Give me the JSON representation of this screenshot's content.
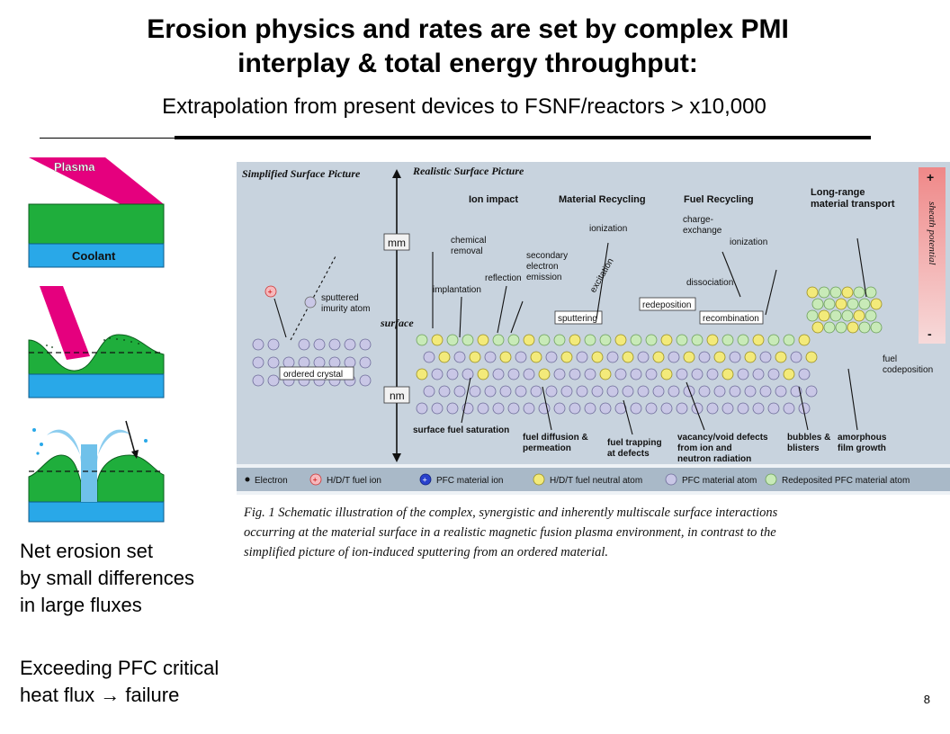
{
  "slide": {
    "title_line1": "Erosion physics and rates are set by complex PMI",
    "title_line2": "interplay & total energy throughput:",
    "subtitle": "Extrapolation from present devices to FSNF/reactors > x10,000",
    "net_erosion_text": "Net erosion set\nby small differences\nin large fluxes",
    "critical_pre": "Exceeding PFC critical",
    "critical_line2_a": "heat flux ",
    "critical_arrow": "→",
    "critical_line2_b": " failure",
    "page_number": "8"
  },
  "sketches": {
    "plasma_label": "Plasma",
    "coolant_label": "Coolant"
  },
  "figure": {
    "simplified_heading": "Simplified Surface Picture",
    "realistic_heading": "Realistic Surface Picture",
    "section_ion_impact": "Ion impact",
    "section_material_recycling": "Material Recycling",
    "section_fuel_recycling": "Fuel Recycling",
    "section_transport": "Long-range",
    "section_transport_2": "material transport",
    "scale_mm": "mm",
    "scale_nm": "nm",
    "surface_label": "surface",
    "sheath_plus": "+",
    "sheath_label": "sheath potential",
    "sheath_minus": "-",
    "labels": {
      "sputtered_1": "sputtered",
      "sputtered_2": "imurity atom",
      "ordered_crystal": "ordered crystal",
      "chemical_1": "chemical",
      "chemical_2": "removal",
      "implantation": "implantation",
      "reflection": "reflection",
      "secondary_1": "secondary",
      "secondary_2": "electron",
      "secondary_3": "emission",
      "ionization_a": "ionization",
      "excitation": "excitation",
      "sputtering": "sputtering",
      "charge_1": "charge-",
      "charge_2": "exchange",
      "ionization_b": "ionization",
      "dissociation": "dissociation",
      "redeposition": "redeposition",
      "recombination": "recombination",
      "fuel_codep_1": "fuel",
      "fuel_codep_2": "codeposition",
      "surface_fuel_sat": "surface fuel saturation",
      "fuel_diff_1": "fuel diffusion &",
      "fuel_diff_2": "permeation",
      "fuel_trap_1": "fuel trapping",
      "fuel_trap_2": "at defects",
      "vacancy_1": "vacancy/void defects",
      "vacancy_2": "from ion and",
      "vacancy_3": "neutron radiation",
      "bubbles_1": "bubbles &",
      "bubbles_2": "blisters",
      "amorphous_1": "amorphous",
      "amorphous_2": "film growth"
    },
    "legend": {
      "electron": "Electron",
      "fuel_ion": "H/D/T fuel ion",
      "pfc_ion": "PFC material ion",
      "neutral": "H/D/T fuel neutral atom",
      "pfc_atom": "PFC material atom",
      "redeposited": "Redeposited PFC material atom"
    },
    "caption_1": "Fig. 1 Schematic illustration of the complex, synergistic and inherently multiscale surface interactions",
    "caption_2": "occurring at the material surface in a realistic magnetic fusion plasma environment, in contrast to the",
    "caption_3": "simplified picture of ion-induced sputtering from an ordered material."
  },
  "colors": {
    "plasma_magenta": "#e5007e",
    "material_green": "#1fae3c",
    "coolant_blue": "#29a8e8",
    "fuel_yellow": "#f3ea7a",
    "pfc_lavender": "#c9c7e6",
    "redeposited_green": "#c8eab8",
    "fuel_ion_pink": "#f6b9bd",
    "pfc_ion_blue": "#2840cc",
    "sheath_gradient_top": "#ef8888",
    "sheath_gradient_bottom": "#f7dada"
  }
}
